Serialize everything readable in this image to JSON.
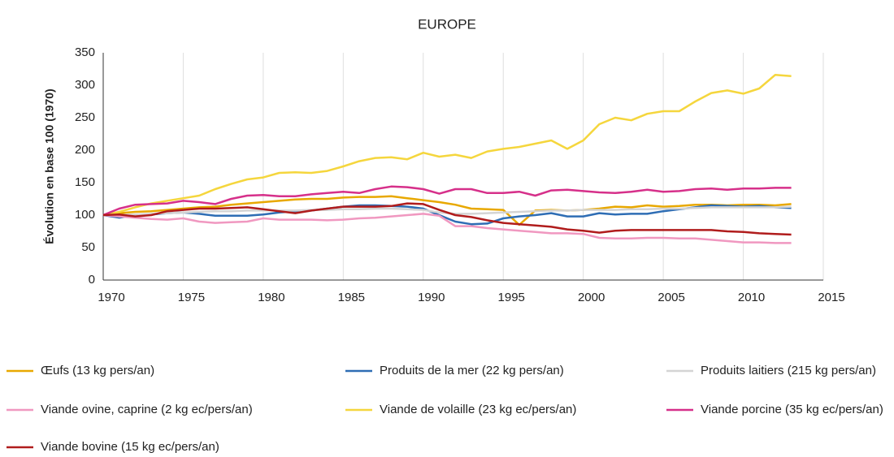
{
  "chart_data": {
    "type": "line",
    "title": "EUROPE",
    "y_label": "Évolution en base 100 (1970)",
    "x": [
      1970,
      1971,
      1972,
      1973,
      1974,
      1975,
      1976,
      1977,
      1978,
      1979,
      1980,
      1981,
      1982,
      1983,
      1984,
      1985,
      1986,
      1987,
      1988,
      1989,
      1990,
      1991,
      1992,
      1993,
      1994,
      1995,
      1996,
      1997,
      1998,
      1999,
      2000,
      2001,
      2002,
      2003,
      2004,
      2005,
      2006,
      2007,
      2008,
      2009,
      2010,
      2011,
      2012,
      2013
    ],
    "xlim": [
      1970,
      2015
    ],
    "xticks": [
      1970,
      1975,
      1980,
      1985,
      1990,
      1995,
      2000,
      2005,
      2010,
      2015
    ],
    "ylim": [
      0,
      350
    ],
    "yticks": [
      0,
      50,
      100,
      150,
      200,
      250,
      300,
      350
    ],
    "grid": true,
    "series": [
      {
        "name": "Œufs (13 kg pers/an)",
        "color": "#e8a800",
        "values": [
          100,
          103,
          105,
          106,
          108,
          110,
          112,
          113,
          116,
          118,
          120,
          122,
          124,
          125,
          125,
          127,
          128,
          128,
          129,
          126,
          123,
          120,
          116,
          110,
          109,
          108,
          85,
          107,
          108,
          107,
          108,
          110,
          113,
          112,
          115,
          113,
          114,
          116,
          116,
          115,
          116,
          116,
          115,
          117
        ]
      },
      {
        "name": "Produits de la mer (22 kg pers/an)",
        "color": "#2e6db4",
        "values": [
          100,
          96,
          100,
          101,
          103,
          104,
          102,
          99,
          99,
          99,
          101,
          104,
          106,
          107,
          110,
          113,
          115,
          115,
          114,
          113,
          110,
          100,
          90,
          86,
          87,
          95,
          98,
          100,
          103,
          98,
          98,
          103,
          101,
          102,
          102,
          106,
          109,
          112,
          115,
          114,
          113,
          114,
          112,
          111
        ]
      },
      {
        "name": "Produits laitiers (215 kg pers/an)",
        "color": "#d4d4d4",
        "values": [
          100,
          100,
          101,
          102,
          103,
          104,
          105,
          106,
          106,
          107,
          107,
          107,
          107,
          108,
          108,
          109,
          109,
          110,
          110,
          109,
          108,
          104,
          102,
          102,
          103,
          104,
          105,
          106,
          107,
          107,
          108,
          108,
          108,
          109,
          109,
          110,
          110,
          111,
          112,
          112,
          112,
          112,
          112,
          113
        ]
      },
      {
        "name": "Viande ovine, caprine (2 kg ec/pers/an)",
        "color": "#f098c0",
        "values": [
          100,
          98,
          96,
          94,
          93,
          95,
          90,
          88,
          89,
          90,
          95,
          93,
          93,
          93,
          92,
          93,
          95,
          96,
          98,
          100,
          102,
          99,
          83,
          83,
          80,
          78,
          76,
          74,
          72,
          72,
          71,
          65,
          64,
          64,
          65,
          65,
          64,
          64,
          62,
          60,
          58,
          58,
          57,
          57
        ]
      },
      {
        "name": "Viande de volaille (23 kg ec/pers/an)",
        "color": "#f5d63d",
        "values": [
          100,
          105,
          112,
          118,
          122,
          126,
          130,
          140,
          148,
          155,
          158,
          165,
          166,
          165,
          168,
          175,
          183,
          188,
          189,
          186,
          196,
          190,
          193,
          188,
          198,
          202,
          205,
          210,
          215,
          202,
          215,
          240,
          250,
          246,
          256,
          260,
          260,
          275,
          288,
          292,
          287,
          295,
          316,
          314
        ]
      },
      {
        "name": "Viande porcine (35 kg ec/pers/an)",
        "color": "#d6308a",
        "values": [
          100,
          110,
          116,
          117,
          118,
          122,
          120,
          117,
          125,
          130,
          131,
          129,
          129,
          132,
          134,
          136,
          134,
          140,
          144,
          143,
          140,
          133,
          140,
          140,
          134,
          134,
          136,
          130,
          138,
          139,
          137,
          135,
          134,
          136,
          139,
          136,
          137,
          140,
          141,
          139,
          141,
          141,
          142,
          142
        ]
      },
      {
        "name": "Viande bovine (15 kg ec/pers/an)",
        "color": "#b01c1c",
        "values": [
          100,
          101,
          98,
          100,
          106,
          108,
          110,
          110,
          111,
          112,
          109,
          106,
          103,
          107,
          110,
          113,
          113,
          113,
          114,
          118,
          117,
          108,
          100,
          97,
          92,
          88,
          86,
          84,
          82,
          78,
          76,
          73,
          76,
          77,
          77,
          77,
          77,
          77,
          77,
          75,
          74,
          72,
          71,
          70
        ]
      }
    ]
  }
}
